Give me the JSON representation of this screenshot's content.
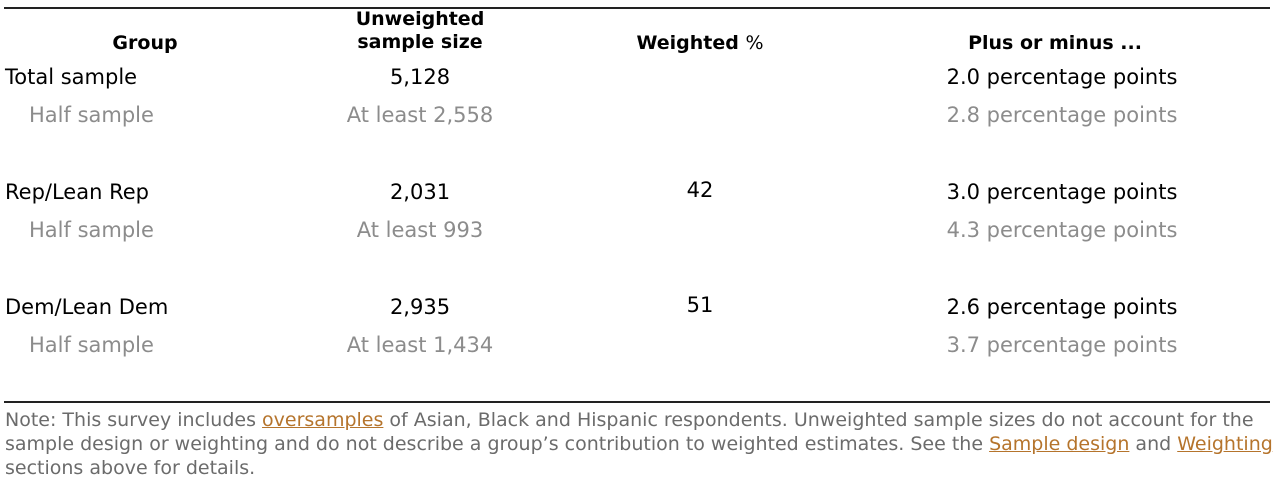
{
  "header": {
    "group": "Group",
    "size_line1": "Unweighted",
    "size_line2": "sample size",
    "weighted": "Weighted",
    "weighted_pct": "%",
    "moe": "Plus or minus ..."
  },
  "rows": [
    {
      "group": "Total sample",
      "size": "5,128",
      "weighted": "",
      "moe": "2.0 percentage points"
    },
    {
      "group": "Half sample",
      "size": "At least 2,558",
      "weighted": "",
      "moe": "2.8 percentage points"
    },
    {
      "group": "Rep/Lean Rep",
      "size": "2,031",
      "weighted": "42",
      "moe": "3.0 percentage points"
    },
    {
      "group": "Half sample",
      "size": "At least 993",
      "weighted": "",
      "moe": "4.3 percentage points"
    },
    {
      "group": "Dem/Lean Dem",
      "size": "2,935",
      "weighted": "51",
      "moe": "2.6 percentage points"
    },
    {
      "group": "Half sample",
      "size": "At least 1,434",
      "weighted": "",
      "moe": "3.7 percentage points"
    }
  ],
  "note": {
    "part1": "Note: This survey includes ",
    "link1": "oversamples",
    "part2": " of Asian, Black and Hispanic respondents. Unweighted sample sizes do not account for the sample design or weighting and do not describe a group’s contribution to weighted estimates. See the ",
    "link2": "Sample design",
    "part3": " and ",
    "link3": "Weighting",
    "part4": " sections above for details."
  },
  "colors": {
    "text": "#000000",
    "muted": "#8c8c8c",
    "note": "#6b6b6b",
    "link": "#b5742c",
    "rule": "#222222"
  }
}
